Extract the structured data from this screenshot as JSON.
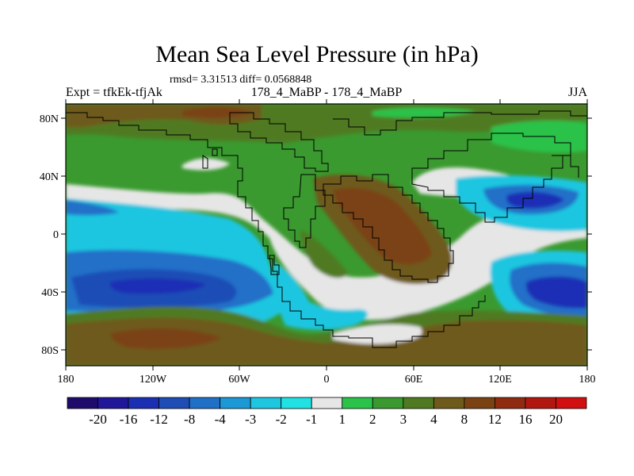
{
  "title": "Mean Sea Level Pressure (in hPa)",
  "stats": "rmsd= 3.31513 diff= 0.0568848",
  "subtitle": {
    "left": "Expt = tfkEk-tfjAk",
    "center": "178_4_MaBP - 178_4_MaBP",
    "right": "JJA"
  },
  "map": {
    "lon_ticks": [
      "180",
      "120W",
      "60W",
      "0",
      "60E",
      "120E",
      "180"
    ],
    "lat_ticks": [
      "80N",
      "40N",
      "0",
      "40S",
      "80S"
    ]
  },
  "colorbar": {
    "labels": [
      "-20",
      "-16",
      "-12",
      "-8",
      "-4",
      "-3",
      "-2",
      "-1",
      "1",
      "2",
      "3",
      "4",
      "8",
      "12",
      "16",
      "20"
    ],
    "colors": [
      "#1e0b6b",
      "#20169a",
      "#1b2fb5",
      "#1e4db6",
      "#2070c8",
      "#1c98d6",
      "#1ec6e0",
      "#22e1e3",
      "#e6e6e6",
      "#2bc24a",
      "#3a9a2f",
      "#4f7a22",
      "#6e5a1a",
      "#7a4213",
      "#8f2b10",
      "#b11711",
      "#d10f10"
    ],
    "accent_background": "#3a9a2f"
  }
}
